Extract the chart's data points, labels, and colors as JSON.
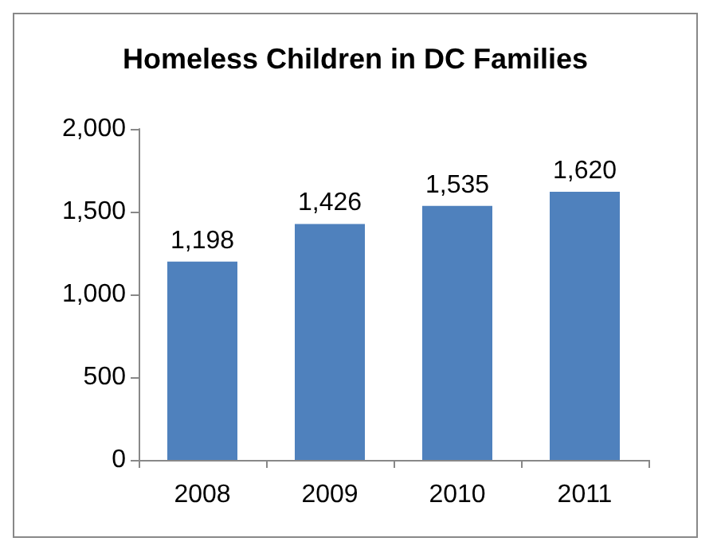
{
  "chart_data": {
    "type": "bar",
    "title": "Homeless Children in DC Families",
    "categories": [
      "2008",
      "2009",
      "2010",
      "2011"
    ],
    "values": [
      1198,
      1426,
      1535,
      1620
    ],
    "value_labels": [
      "1,198",
      "1,426",
      "1,535",
      "1,620"
    ],
    "color": "#4f81bd",
    "grid": false,
    "ylim": [
      0,
      2000
    ],
    "yticks": [
      0,
      500,
      {
        "value": 1000,
        "label": "1,000"
      },
      {
        "value": 1500,
        "label": "1,500"
      },
      {
        "value": 2000,
        "label": "2,000"
      }
    ]
  }
}
